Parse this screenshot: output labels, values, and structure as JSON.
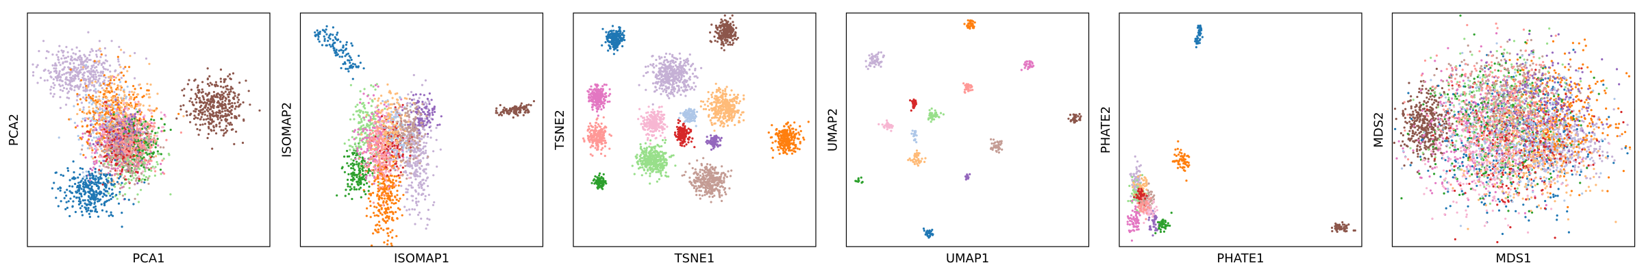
{
  "chart_data": [
    {
      "type": "scatter",
      "xlabel": "PCA1",
      "ylabel": "PCA2",
      "xlim": [
        0,
        100
      ],
      "ylim": [
        0,
        100
      ],
      "grid": false,
      "clusters": [
        {
          "color": "#c5b0d5",
          "x": 22,
          "y": 74,
          "sx": 8,
          "sy": 6,
          "n": 420
        },
        {
          "color": "#ff7f0e",
          "x": 36,
          "y": 56,
          "sx": 7,
          "sy": 9,
          "n": 380
        },
        {
          "color": "#ffbb78",
          "x": 38,
          "y": 52,
          "sx": 7,
          "sy": 10,
          "n": 320
        },
        {
          "color": "#aec7e8",
          "x": 34,
          "y": 50,
          "sx": 6,
          "sy": 9,
          "n": 180
        },
        {
          "color": "#e377c2",
          "x": 38,
          "y": 44,
          "sx": 7,
          "sy": 7,
          "n": 220
        },
        {
          "color": "#f7b6d2",
          "x": 42,
          "y": 48,
          "sx": 6,
          "sy": 7,
          "n": 160
        },
        {
          "color": "#98df8a",
          "x": 44,
          "y": 38,
          "sx": 6,
          "sy": 7,
          "n": 180
        },
        {
          "color": "#2ca02c",
          "x": 46,
          "y": 44,
          "sx": 5,
          "sy": 6,
          "n": 160
        },
        {
          "color": "#d62728",
          "x": 38,
          "y": 42,
          "sx": 5,
          "sy": 6,
          "n": 180
        },
        {
          "color": "#9467bd",
          "x": 40,
          "y": 46,
          "sx": 5,
          "sy": 6,
          "n": 140
        },
        {
          "color": "#c49c94",
          "x": 40,
          "y": 40,
          "sx": 6,
          "sy": 7,
          "n": 200
        },
        {
          "color": "#ff9896",
          "x": 44,
          "y": 44,
          "sx": 6,
          "sy": 6,
          "n": 140
        },
        {
          "color": "#1f77b4",
          "x": 26,
          "y": 24,
          "sx": 6,
          "sy": 5,
          "n": 320
        },
        {
          "color": "#8c564b",
          "x": 78,
          "y": 60,
          "sx": 6,
          "sy": 6,
          "n": 380
        }
      ]
    },
    {
      "type": "scatter",
      "xlabel": "ISOMAP1",
      "ylabel": "ISOMAP2",
      "xlim": [
        0,
        100
      ],
      "ylim": [
        0,
        100
      ],
      "grid": false,
      "clusters": [
        {
          "color": "#1f77b4",
          "x": 10,
          "y": 90,
          "sx": 3,
          "sy": 2,
          "n": 40
        },
        {
          "color": "#1f77b4",
          "x": 16,
          "y": 85,
          "sx": 3,
          "sy": 2,
          "n": 40
        },
        {
          "color": "#1f77b4",
          "x": 21,
          "y": 78,
          "sx": 2,
          "sy": 2,
          "n": 30
        },
        {
          "color": "#8c564b",
          "x": 86,
          "y": 58,
          "sx": 3,
          "sy": 1.2,
          "n": 60
        },
        {
          "color": "#8c564b",
          "x": 92,
          "y": 59,
          "sx": 2,
          "sy": 1,
          "n": 40
        },
        {
          "color": "#c5b0d5",
          "x": 48,
          "y": 38,
          "sx": 3,
          "sy": 12,
          "n": 300
        },
        {
          "color": "#ff7f0e",
          "x": 35,
          "y": 24,
          "sx": 3,
          "sy": 12,
          "n": 300
        },
        {
          "color": "#2ca02c",
          "x": 24,
          "y": 32,
          "sx": 3,
          "sy": 5,
          "n": 150
        },
        {
          "color": "#98df8a",
          "x": 28,
          "y": 50,
          "sx": 4,
          "sy": 8,
          "n": 200
        },
        {
          "color": "#e377c2",
          "x": 32,
          "y": 46,
          "sx": 4,
          "sy": 8,
          "n": 180
        },
        {
          "color": "#f7b6d2",
          "x": 36,
          "y": 45,
          "sx": 4,
          "sy": 8,
          "n": 150
        },
        {
          "color": "#d62728",
          "x": 38,
          "y": 45,
          "sx": 3,
          "sy": 6,
          "n": 140
        },
        {
          "color": "#aec7e8",
          "x": 40,
          "y": 50,
          "sx": 3,
          "sy": 7,
          "n": 120
        },
        {
          "color": "#ffbb78",
          "x": 37,
          "y": 52,
          "sx": 4,
          "sy": 7,
          "n": 140
        },
        {
          "color": "#9467bd",
          "x": 50,
          "y": 56,
          "sx": 3,
          "sy": 4,
          "n": 100
        },
        {
          "color": "#c49c94",
          "x": 45,
          "y": 50,
          "sx": 3,
          "sy": 7,
          "n": 150
        },
        {
          "color": "#ff9896",
          "x": 32,
          "y": 40,
          "sx": 3,
          "sy": 7,
          "n": 120
        }
      ]
    },
    {
      "type": "scatter",
      "xlabel": "TSNE1",
      "ylabel": "TSNE2",
      "xlim": [
        0,
        100
      ],
      "ylim": [
        0,
        100
      ],
      "grid": false,
      "clusters": [
        {
          "color": "#8c564b",
          "x": 63,
          "y": 92,
          "sx": 2.2,
          "sy": 2.6,
          "n": 220
        },
        {
          "color": "#1f77b4",
          "x": 17,
          "y": 89,
          "sx": 1.8,
          "sy": 2,
          "n": 200
        },
        {
          "color": "#c5b0d5",
          "x": 41,
          "y": 73,
          "sx": 4.2,
          "sy": 4.2,
          "n": 420
        },
        {
          "color": "#e377c2",
          "x": 10,
          "y": 64,
          "sx": 2,
          "sy": 2.6,
          "n": 200
        },
        {
          "color": "#ffbb78",
          "x": 62,
          "y": 59,
          "sx": 3.5,
          "sy": 4,
          "n": 320
        },
        {
          "color": "#aec7e8",
          "x": 48,
          "y": 56,
          "sx": 1.4,
          "sy": 1.6,
          "n": 100
        },
        {
          "color": "#f7b6d2",
          "x": 33,
          "y": 53,
          "sx": 2.4,
          "sy": 2.8,
          "n": 220
        },
        {
          "color": "#ff9896",
          "x": 10,
          "y": 47,
          "sx": 2.2,
          "sy": 2.6,
          "n": 200
        },
        {
          "color": "#d62728",
          "x": 45,
          "y": 48,
          "sx": 1.6,
          "sy": 1.8,
          "n": 140
        },
        {
          "color": "#9467bd",
          "x": 58,
          "y": 45,
          "sx": 1.1,
          "sy": 1.2,
          "n": 80
        },
        {
          "color": "#ff7f0e",
          "x": 88,
          "y": 46,
          "sx": 2.6,
          "sy": 2.8,
          "n": 250
        },
        {
          "color": "#98df8a",
          "x": 33,
          "y": 37,
          "sx": 3.2,
          "sy": 3.4,
          "n": 320
        },
        {
          "color": "#c49c94",
          "x": 56,
          "y": 28,
          "sx": 3.4,
          "sy": 3.4,
          "n": 320
        },
        {
          "color": "#2ca02c",
          "x": 11,
          "y": 28,
          "sx": 1.2,
          "sy": 1.4,
          "n": 80
        }
      ]
    },
    {
      "type": "scatter",
      "xlabel": "UMAP1",
      "ylabel": "UMAP2",
      "xlim": [
        0,
        100
      ],
      "ylim": [
        0,
        100
      ],
      "grid": false,
      "clusters": [
        {
          "color": "#ff7f0e",
          "x": 51,
          "y": 95,
          "sx": 0.9,
          "sy": 1.1,
          "n": 30
        },
        {
          "color": "#c5b0d5",
          "x": 12,
          "y": 80,
          "sx": 1.4,
          "sy": 1.6,
          "n": 60
        },
        {
          "color": "#e377c2",
          "x": 75,
          "y": 78,
          "sx": 1.1,
          "sy": 1.2,
          "n": 30
        },
        {
          "color": "#ff9896",
          "x": 50,
          "y": 68,
          "sx": 1.1,
          "sy": 1.1,
          "n": 30
        },
        {
          "color": "#d62728",
          "x": 28,
          "y": 61,
          "sx": 0.8,
          "sy": 1,
          "n": 20
        },
        {
          "color": "#98df8a",
          "x": 36,
          "y": 56,
          "sx": 1.3,
          "sy": 1.3,
          "n": 40
        },
        {
          "color": "#8c564b",
          "x": 94,
          "y": 55,
          "sx": 1.4,
          "sy": 0.9,
          "n": 40
        },
        {
          "color": "#f7b6d2",
          "x": 17,
          "y": 52,
          "sx": 1,
          "sy": 1,
          "n": 30
        },
        {
          "color": "#aec7e8",
          "x": 28,
          "y": 48,
          "sx": 0.6,
          "sy": 1.2,
          "n": 20
        },
        {
          "color": "#c49c94",
          "x": 62,
          "y": 43,
          "sx": 1.4,
          "sy": 1.4,
          "n": 40
        },
        {
          "color": "#ffbb78",
          "x": 29,
          "y": 38,
          "sx": 1.4,
          "sy": 1.4,
          "n": 40
        },
        {
          "color": "#9467bd",
          "x": 50,
          "y": 30,
          "sx": 0.6,
          "sy": 0.7,
          "n": 12
        },
        {
          "color": "#2ca02c",
          "x": 5,
          "y": 28,
          "sx": 0.6,
          "sy": 0.8,
          "n": 10
        },
        {
          "color": "#1f77b4",
          "x": 34,
          "y": 6,
          "sx": 1,
          "sy": 1,
          "n": 25
        }
      ]
    },
    {
      "type": "scatter",
      "xlabel": "PHATE1",
      "ylabel": "PHATE2",
      "xlim": [
        0,
        100
      ],
      "ylim": [
        0,
        100
      ],
      "grid": false,
      "clusters": [
        {
          "color": "#1f77b4",
          "x": 33,
          "y": 92,
          "sx": 0.6,
          "sy": 2,
          "n": 30
        },
        {
          "color": "#1f77b4",
          "x": 32,
          "y": 88,
          "sx": 0.5,
          "sy": 1.5,
          "n": 15
        },
        {
          "color": "#ff7f0e",
          "x": 26,
          "y": 37,
          "sx": 1.6,
          "sy": 2.2,
          "n": 60
        },
        {
          "color": "#8c564b",
          "x": 91,
          "y": 8,
          "sx": 2,
          "sy": 1,
          "n": 50
        },
        {
          "color": "#c5b0d5",
          "x": 7,
          "y": 28,
          "sx": 1,
          "sy": 4,
          "n": 70
        },
        {
          "color": "#98df8a",
          "x": 8,
          "y": 22,
          "sx": 1.6,
          "sy": 3.5,
          "n": 70
        },
        {
          "color": "#e377c2",
          "x": 6,
          "y": 12,
          "sx": 1.2,
          "sy": 3,
          "n": 60
        },
        {
          "color": "#c49c94",
          "x": 12,
          "y": 20,
          "sx": 2,
          "sy": 2,
          "n": 60
        },
        {
          "color": "#ffbb78",
          "x": 9,
          "y": 26,
          "sx": 1.6,
          "sy": 2.2,
          "n": 40
        },
        {
          "color": "#d62728",
          "x": 9,
          "y": 22,
          "sx": 1,
          "sy": 2,
          "n": 40
        },
        {
          "color": "#9467bd",
          "x": 14,
          "y": 11,
          "sx": 1,
          "sy": 2,
          "n": 40
        },
        {
          "color": "#2ca02c",
          "x": 18,
          "y": 9,
          "sx": 1.4,
          "sy": 1.4,
          "n": 40
        },
        {
          "color": "#f7b6d2",
          "x": 12,
          "y": 16,
          "sx": 1.6,
          "sy": 2,
          "n": 40
        },
        {
          "color": "#ff9896",
          "x": 10,
          "y": 18,
          "sx": 1.6,
          "sy": 2,
          "n": 40
        }
      ]
    },
    {
      "type": "scatter",
      "xlabel": "MDS1",
      "ylabel": "MDS2",
      "xlim": [
        0,
        100
      ],
      "ylim": [
        0,
        100
      ],
      "grid": false,
      "clusters": [
        {
          "color": "#8c564b",
          "x": 14,
          "y": 52,
          "sx": 5,
          "sy": 7,
          "n": 400
        },
        {
          "color": "#c5b0d5",
          "x": 70,
          "y": 44,
          "sx": 9,
          "sy": 7,
          "n": 400
        },
        {
          "color": "#ff7f0e",
          "x": 66,
          "y": 56,
          "sx": 12,
          "sy": 12,
          "n": 420
        },
        {
          "color": "#e377c2",
          "x": 36,
          "y": 48,
          "sx": 14,
          "sy": 14,
          "n": 320
        },
        {
          "color": "#1f77b4",
          "x": 48,
          "y": 44,
          "sx": 18,
          "sy": 16,
          "n": 320
        },
        {
          "color": "#2ca02c",
          "x": 44,
          "y": 52,
          "sx": 16,
          "sy": 16,
          "n": 320
        },
        {
          "color": "#98df8a",
          "x": 44,
          "y": 56,
          "sx": 14,
          "sy": 13,
          "n": 300
        },
        {
          "color": "#d62728",
          "x": 52,
          "y": 44,
          "sx": 14,
          "sy": 14,
          "n": 300
        },
        {
          "color": "#c49c94",
          "x": 48,
          "y": 64,
          "sx": 12,
          "sy": 10,
          "n": 300
        },
        {
          "color": "#f7b6d2",
          "x": 40,
          "y": 38,
          "sx": 13,
          "sy": 11,
          "n": 300
        },
        {
          "color": "#ffbb78",
          "x": 56,
          "y": 40,
          "sx": 13,
          "sy": 12,
          "n": 280
        },
        {
          "color": "#9467bd",
          "x": 60,
          "y": 60,
          "sx": 13,
          "sy": 12,
          "n": 260
        },
        {
          "color": "#aec7e8",
          "x": 52,
          "y": 50,
          "sx": 16,
          "sy": 14,
          "n": 280
        },
        {
          "color": "#ff9896",
          "x": 42,
          "y": 60,
          "sx": 13,
          "sy": 13,
          "n": 260
        }
      ]
    }
  ]
}
